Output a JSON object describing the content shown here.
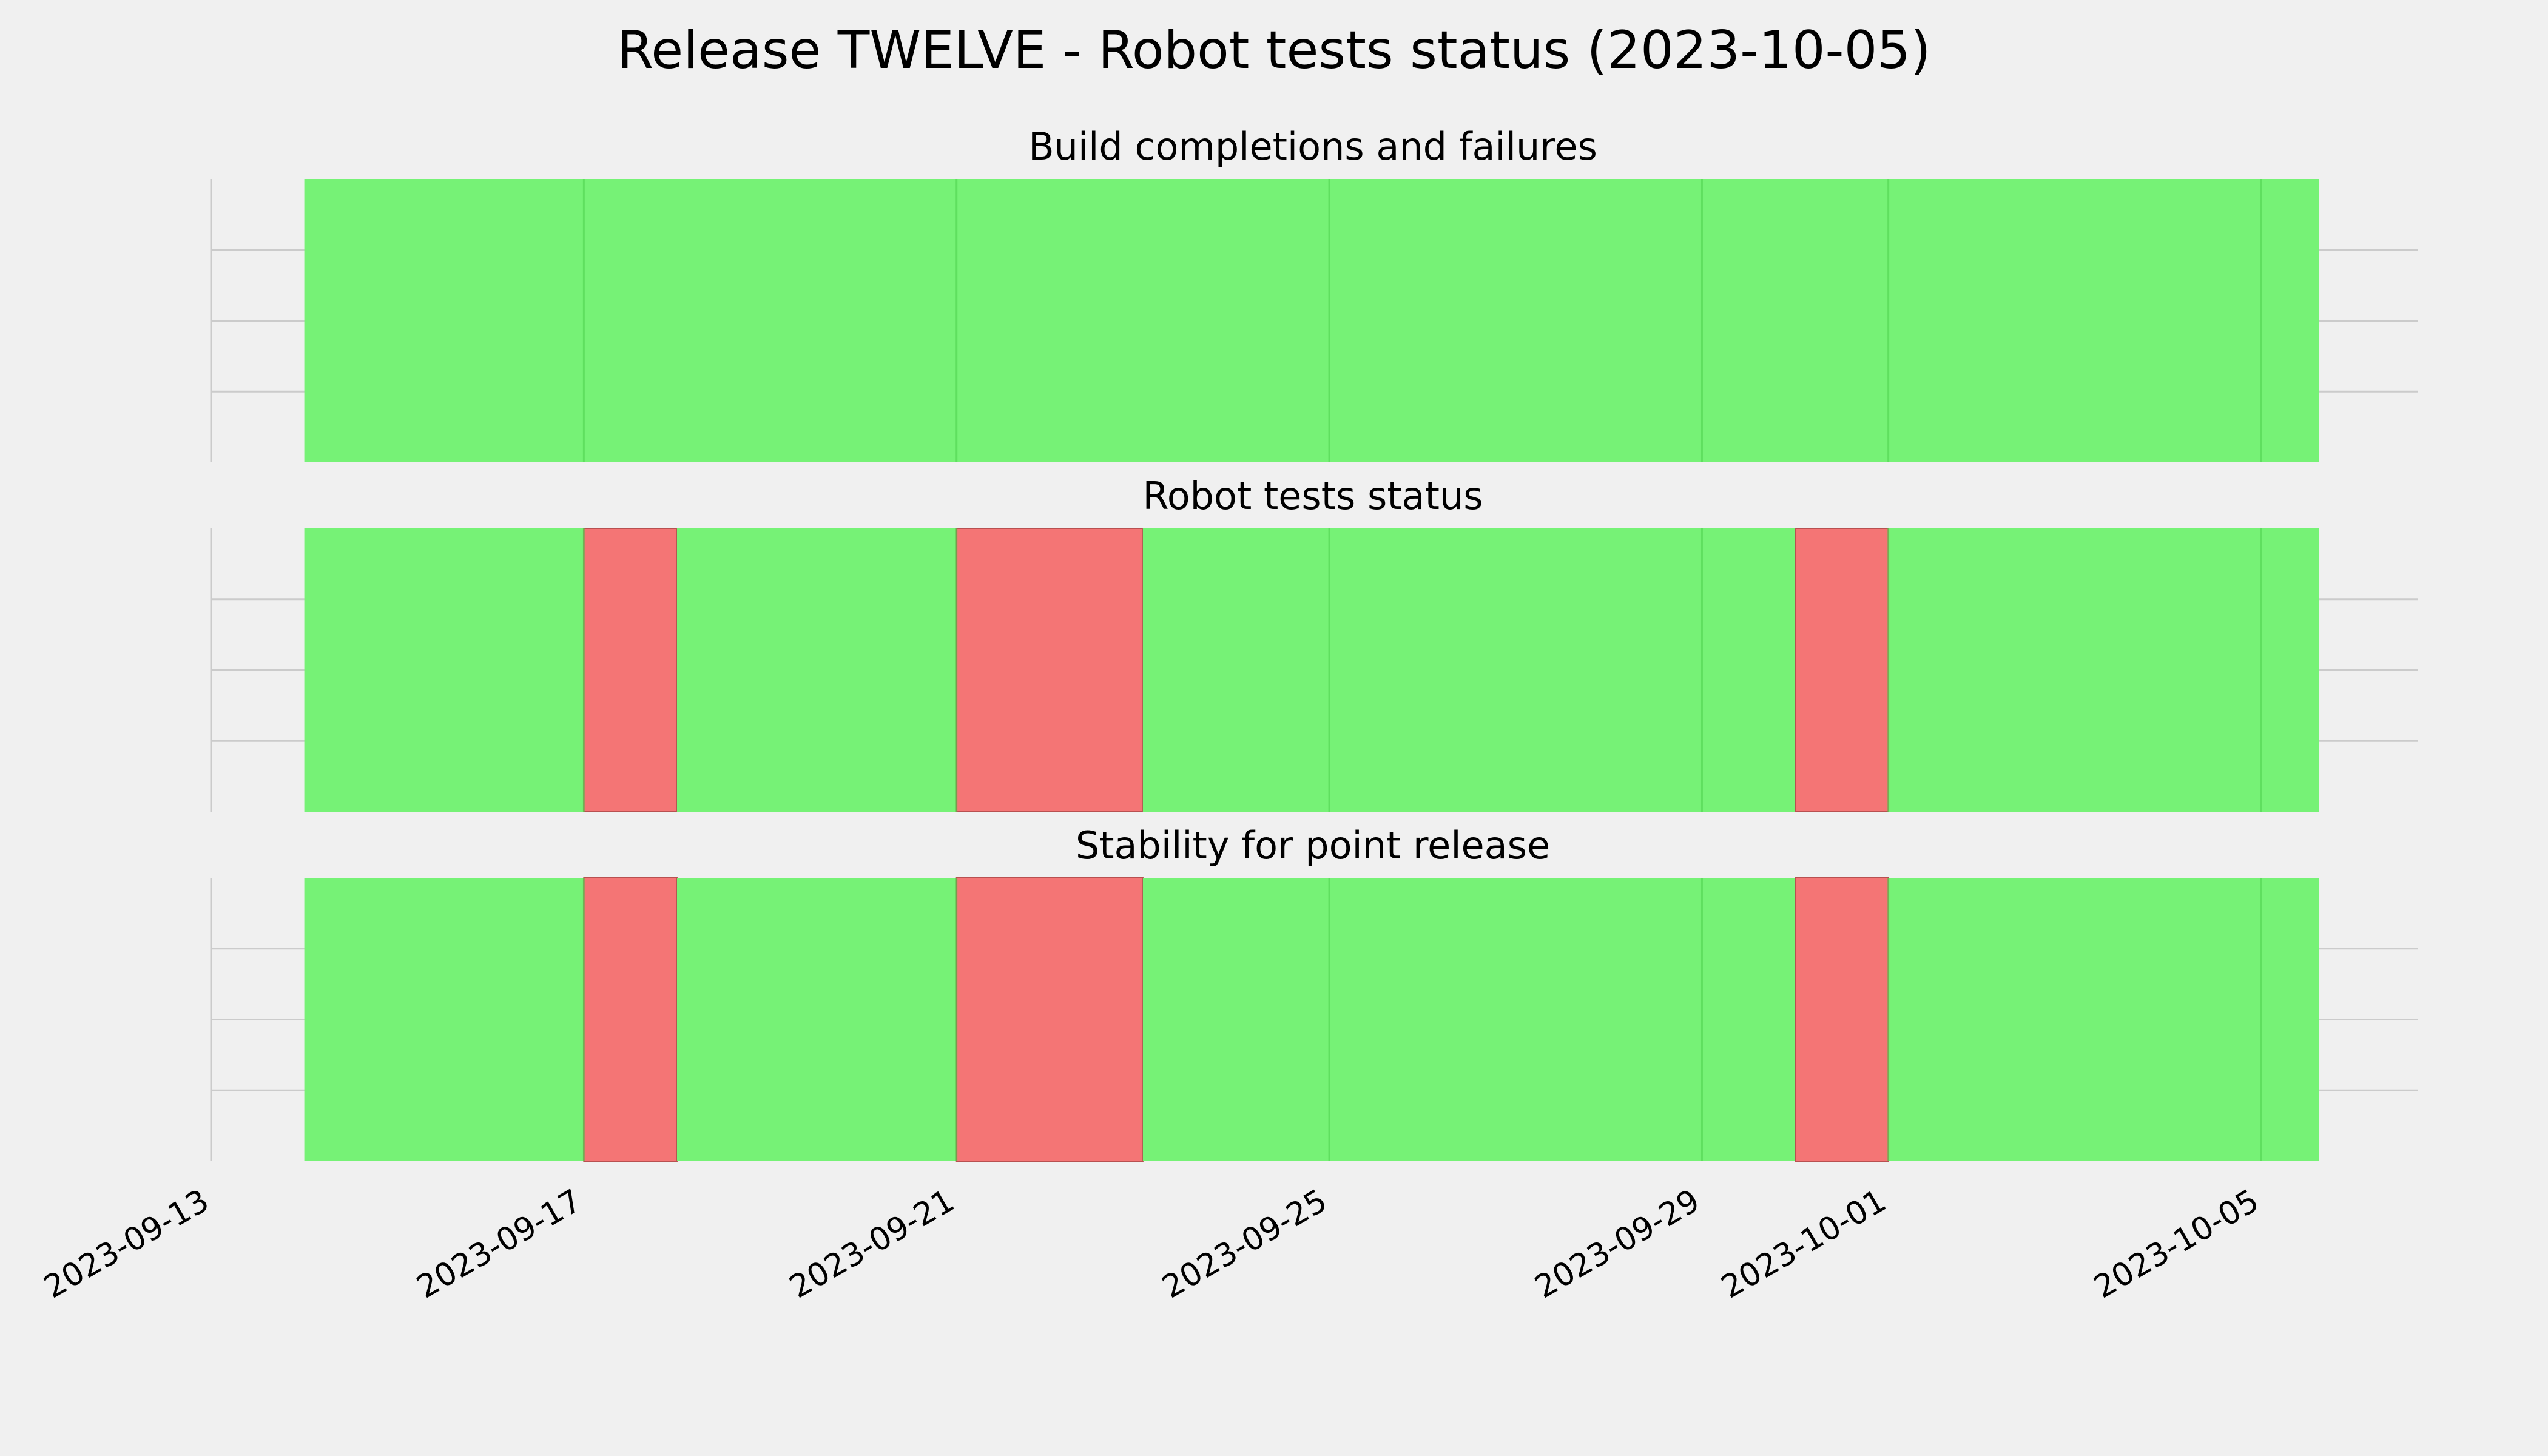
{
  "chart_data": {
    "type": "timeline",
    "title": "Release TWELVE - Robot tests status (2023-10-05)",
    "x_range": [
      "2023-09-13",
      "2023-10-07"
    ],
    "x_ticks": [
      "2023-09-13",
      "2023-09-17",
      "2023-09-21",
      "2023-09-25",
      "2023-09-29",
      "2023-10-01",
      "2023-10-05"
    ],
    "grid": true,
    "status_colors": {
      "pass": "#76f276",
      "fail": "#f47575"
    },
    "panels": [
      {
        "title": "Build completions and failures",
        "segments": [
          {
            "start": "2023-09-14",
            "end": "2023-10-05T15:00",
            "status": "pass"
          }
        ]
      },
      {
        "title": "Robot tests status",
        "segments": [
          {
            "start": "2023-09-14",
            "end": "2023-09-17",
            "status": "pass"
          },
          {
            "start": "2023-09-17",
            "end": "2023-09-18",
            "status": "fail"
          },
          {
            "start": "2023-09-18",
            "end": "2023-09-21",
            "status": "pass"
          },
          {
            "start": "2023-09-21",
            "end": "2023-09-23",
            "status": "fail"
          },
          {
            "start": "2023-09-23",
            "end": "2023-09-30",
            "status": "pass"
          },
          {
            "start": "2023-09-30",
            "end": "2023-10-01",
            "status": "fail"
          },
          {
            "start": "2023-10-01",
            "end": "2023-10-05T15:00",
            "status": "pass"
          }
        ]
      },
      {
        "title": "Stability for point release",
        "segments": [
          {
            "start": "2023-09-14",
            "end": "2023-09-17",
            "status": "pass"
          },
          {
            "start": "2023-09-17",
            "end": "2023-09-18",
            "status": "fail"
          },
          {
            "start": "2023-09-18",
            "end": "2023-09-21",
            "status": "pass"
          },
          {
            "start": "2023-09-21",
            "end": "2023-09-23",
            "status": "fail"
          },
          {
            "start": "2023-09-23",
            "end": "2023-09-30",
            "status": "pass"
          },
          {
            "start": "2023-09-30",
            "end": "2023-10-01",
            "status": "fail"
          },
          {
            "start": "2023-10-01",
            "end": "2023-10-05T15:00",
            "status": "pass"
          }
        ]
      }
    ]
  }
}
